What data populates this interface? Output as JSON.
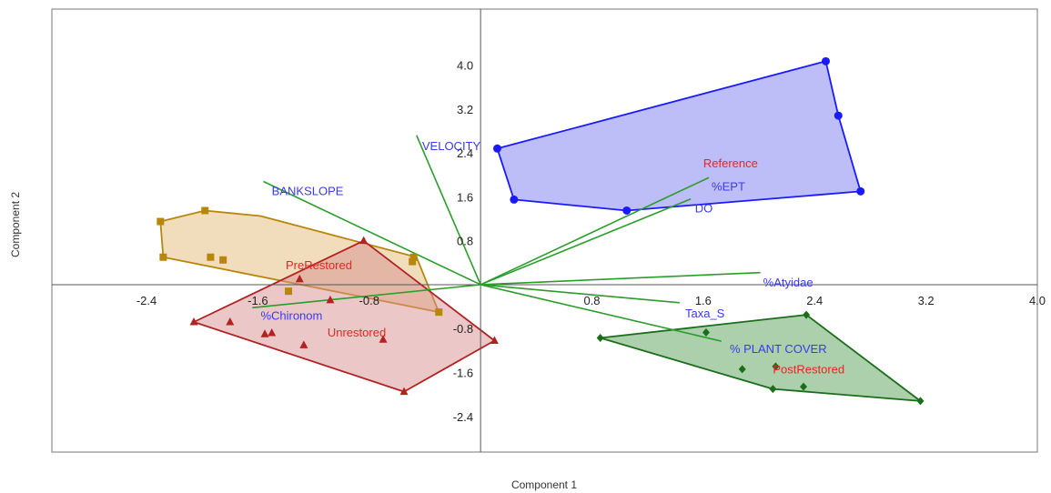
{
  "chart_data": {
    "type": "scatter",
    "xlabel": "Component 1",
    "ylabel": "Component 2",
    "xlim": [
      -3.08,
      4.0
    ],
    "ylim": [
      -3.05,
      5.02
    ],
    "x_ticks": [
      -2.4,
      -1.6,
      -0.8,
      0.8,
      1.6,
      2.4,
      3.2,
      4.0
    ],
    "y_ticks": [
      4.0,
      3.2,
      2.4,
      1.6,
      0.8,
      -0.8,
      -1.6,
      -2.4
    ],
    "x_tick_labels": [
      "-2.4",
      "-1.6",
      "-0.8",
      "0.8",
      "1.6",
      "2.4",
      "3.2",
      "4.0"
    ],
    "y_tick_labels": [
      "4.0",
      "3.2",
      "2.4",
      "1.6",
      "0.8",
      "-0.8",
      "-1.6",
      "-2.4"
    ],
    "grid": false,
    "groups": [
      {
        "name": "Reference",
        "marker": "circle",
        "color": "#1a1aff",
        "fill": "#7b7bf0",
        "hull": [
          [
            2.48,
            4.07
          ],
          [
            2.57,
            3.08
          ],
          [
            2.73,
            1.7
          ],
          [
            1.05,
            1.35
          ],
          [
            0.24,
            1.55
          ],
          [
            0.12,
            2.48
          ]
        ],
        "points": [
          [
            2.48,
            4.07
          ],
          [
            2.57,
            3.08
          ],
          [
            2.73,
            1.7
          ],
          [
            1.05,
            1.35
          ],
          [
            0.24,
            1.55
          ],
          [
            0.12,
            2.48
          ]
        ],
        "label": "Reference",
        "label_pos": [
          1.6,
          2.2
        ]
      },
      {
        "name": "PostRestored",
        "marker": "diamond",
        "color": "#1a6e1a",
        "fill": "#5aa05a",
        "hull": [
          [
            0.86,
            -0.97
          ],
          [
            2.34,
            -0.55
          ],
          [
            3.16,
            -2.12
          ],
          [
            2.1,
            -1.9
          ]
        ],
        "points": [
          [
            0.86,
            -0.97
          ],
          [
            2.34,
            -0.55
          ],
          [
            3.16,
            -2.12
          ],
          [
            2.1,
            -1.9
          ],
          [
            2.32,
            -1.86
          ],
          [
            1.62,
            -0.87
          ],
          [
            1.88,
            -1.54
          ],
          [
            2.12,
            -1.49
          ]
        ],
        "label": "PostRestored",
        "label_pos": [
          2.1,
          -1.55
        ]
      },
      {
        "name": "PreRestored",
        "marker": "square",
        "color": "#b8860b",
        "fill": "#e3bc7a",
        "hull": [
          [
            -1.98,
            1.35
          ],
          [
            -1.58,
            1.25
          ],
          [
            -0.46,
            0.5
          ],
          [
            -0.3,
            -0.5
          ],
          [
            -2.28,
            0.5
          ],
          [
            -2.3,
            1.15
          ]
        ],
        "points": [
          [
            -1.98,
            1.35
          ],
          [
            -2.3,
            1.15
          ],
          [
            -2.28,
            0.5
          ],
          [
            -1.94,
            0.5
          ],
          [
            -1.85,
            0.45
          ],
          [
            -0.48,
            0.5
          ],
          [
            -0.49,
            0.42
          ],
          [
            -1.38,
            -0.12
          ],
          [
            -0.3,
            -0.5
          ]
        ],
        "label": "PreRestored",
        "label_pos": [
          -1.4,
          0.35
        ]
      },
      {
        "name": "Unrestored",
        "marker": "triangle",
        "color": "#b22222",
        "fill": "#d89090",
        "hull": [
          [
            -0.84,
            0.8
          ],
          [
            0.1,
            -1.02
          ],
          [
            -0.55,
            -1.95
          ],
          [
            -2.06,
            -0.68
          ]
        ],
        "points": [
          [
            -0.84,
            0.8
          ],
          [
            -1.3,
            0.1
          ],
          [
            -1.08,
            -0.28
          ],
          [
            -1.8,
            -0.68
          ],
          [
            -1.55,
            -0.9
          ],
          [
            -1.5,
            -0.88
          ],
          [
            -1.27,
            -1.1
          ],
          [
            -0.7,
            -1.0
          ],
          [
            0.1,
            -1.02
          ],
          [
            -0.55,
            -1.95
          ],
          [
            -2.06,
            -0.68
          ]
        ],
        "label": "Unrestored",
        "label_pos": [
          -1.1,
          -0.88
        ]
      }
    ],
    "loadings": [
      {
        "name": "VELOCITY",
        "end": [
          -0.46,
          2.72
        ],
        "label_pos": [
          -0.42,
          2.52
        ]
      },
      {
        "name": "BANKSLOPE",
        "end": [
          -1.56,
          1.88
        ],
        "label_pos": [
          -1.5,
          1.7
        ]
      },
      {
        "name": "%EPT",
        "end": [
          1.64,
          1.95
        ],
        "label_pos": [
          1.66,
          1.78
        ]
      },
      {
        "name": "DO",
        "end": [
          1.51,
          1.56
        ],
        "label_pos": [
          1.54,
          1.38
        ]
      },
      {
        "name": "%Atyidae",
        "end": [
          2.01,
          0.22
        ],
        "label_pos": [
          2.03,
          0.03
        ]
      },
      {
        "name": "Taxa_S",
        "end": [
          1.43,
          -0.33
        ],
        "label_pos": [
          1.47,
          -0.53
        ]
      },
      {
        "name": "% PLANT COVER",
        "end": [
          1.73,
          -1.03
        ],
        "label_pos": [
          1.79,
          -1.18
        ]
      },
      {
        "name": "%Chironom",
        "end": [
          -1.64,
          -0.42
        ],
        "label_pos": [
          -1.58,
          -0.57
        ]
      }
    ],
    "colors": {
      "loading_line": "#2a9d2a",
      "loading_label": "#3a3af0",
      "group_label": "#ee2222",
      "axis": "#555555",
      "frame": "#777777"
    }
  }
}
